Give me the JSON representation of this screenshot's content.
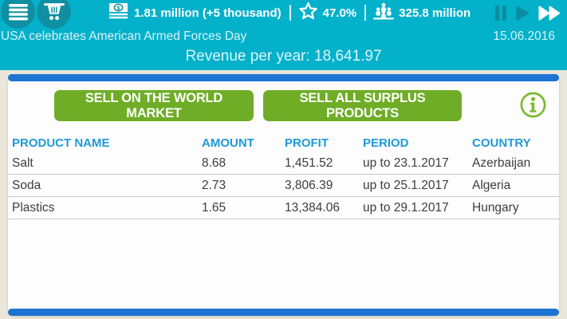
{
  "colors": {
    "teal": "#04b1cb",
    "teal_dark": "#0e8fa2",
    "blue_bar": "#1d73d2",
    "header_blue": "#1e9ad7",
    "button_green": "#6fad27",
    "info_green": "#7aba2e",
    "bg": "#eae6da"
  },
  "topbar": {
    "money": "1.81 million (+5 thousand)",
    "rating": "47.0%",
    "population": "325.8 million"
  },
  "news": {
    "text": "USA celebrates American Armed Forces Day",
    "date": "15.06.2016"
  },
  "revenue": {
    "line": "Revenue per year: 18,641.97"
  },
  "panel": {
    "buttons": [
      "SELL ON THE WORLD MARKET",
      "SELL ALL SURPLUS PRODUCTS"
    ],
    "table": {
      "headers": [
        "PRODUCT NAME",
        "AMOUNT",
        "PROFIT",
        "PERIOD",
        "COUNTRY"
      ],
      "rows": [
        [
          "Salt",
          "8.68",
          "1,451.52",
          "up to 23.1.2017",
          "Azerbaijan"
        ],
        [
          "Soda",
          "2.73",
          "3,806.39",
          "up to 25.1.2017",
          "Algeria"
        ],
        [
          "Plastics",
          "1.65",
          "13,384.06",
          "up to 29.1.2017",
          "Hungary"
        ]
      ]
    }
  }
}
